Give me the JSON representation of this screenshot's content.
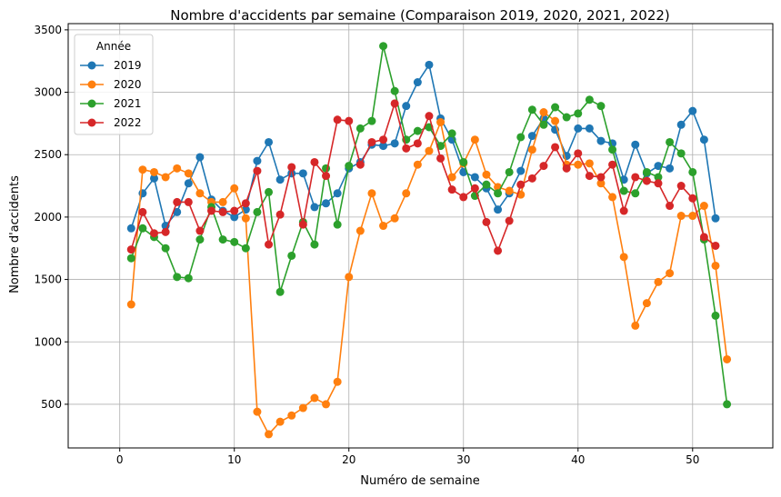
{
  "chart_data": {
    "type": "line",
    "title": "Nombre d'accidents par semaine (Comparaison 2019, 2020, 2021, 2022)",
    "xlabel": "Numéro de semaine",
    "ylabel": "Nombre d'accidents",
    "xlim": [
      -4.5,
      57.0
    ],
    "ylim": [
      150,
      3550
    ],
    "xticks": [
      0,
      10,
      20,
      30,
      40,
      50
    ],
    "yticks": [
      500,
      1000,
      1500,
      2000,
      2500,
      3000,
      3500
    ],
    "grid": true,
    "legend": {
      "title": "Année",
      "placement": "top-left"
    },
    "series": [
      {
        "name": "2019",
        "color": "#1f77b4",
        "values": [
          1910,
          2190,
          2310,
          1930,
          2040,
          2270,
          2480,
          2140,
          2050,
          2000,
          2060,
          2450,
          2600,
          2300,
          2350,
          2350,
          2080,
          2110,
          2190,
          2390,
          2440,
          2580,
          2570,
          2590,
          2890,
          3080,
          3220,
          2790,
          2620,
          2360,
          2320,
          2230,
          2060,
          2190,
          2370,
          2650,
          2790,
          2700,
          2490,
          2710,
          2710,
          2610,
          2590,
          2300,
          2580,
          2350,
          2410,
          2390,
          2740,
          2850,
          2620,
          1990
        ]
      },
      {
        "name": "2020",
        "color": "#ff7f0e",
        "values": [
          1300,
          2380,
          2360,
          2320,
          2390,
          2350,
          2190,
          2120,
          2120,
          2230,
          1990,
          440,
          260,
          360,
          410,
          470,
          550,
          500,
          680,
          1520,
          1890,
          2190,
          1930,
          1990,
          2190,
          2420,
          2530,
          2760,
          2320,
          2430,
          2620,
          2340,
          2240,
          2210,
          2180,
          2540,
          2840,
          2770,
          2420,
          2420,
          2430,
          2270,
          2160,
          1680,
          1130,
          1310,
          1480,
          1550,
          2010,
          2010,
          2090,
          1610,
          860
        ]
      },
      {
        "name": "2021",
        "color": "#2ca02c",
        "values": [
          1670,
          1910,
          1840,
          1750,
          1520,
          1510,
          1820,
          2080,
          1820,
          1800,
          1750,
          2040,
          2200,
          1400,
          1690,
          1960,
          1780,
          2390,
          1940,
          2410,
          2710,
          2770,
          3370,
          3010,
          2620,
          2690,
          2720,
          2570,
          2670,
          2440,
          2170,
          2260,
          2190,
          2360,
          2640,
          2860,
          2740,
          2880,
          2800,
          2830,
          2940,
          2890,
          2540,
          2210,
          2190,
          2360,
          2320,
          2600,
          2510,
          2360,
          1820,
          1210,
          500
        ]
      },
      {
        "name": "2022",
        "color": "#d62728",
        "values": [
          1740,
          2040,
          1870,
          1880,
          2120,
          2120,
          1890,
          2050,
          2040,
          2050,
          2110,
          2370,
          1780,
          2020,
          2400,
          1940,
          2440,
          2330,
          2780,
          2770,
          2420,
          2600,
          2620,
          2910,
          2550,
          2590,
          2810,
          2470,
          2220,
          2160,
          2230,
          1960,
          1730,
          1970,
          2260,
          2310,
          2410,
          2560,
          2390,
          2510,
          2330,
          2320,
          2420,
          2050,
          2320,
          2290,
          2270,
          2090,
          2250,
          2150,
          1840,
          1770
        ]
      }
    ]
  }
}
